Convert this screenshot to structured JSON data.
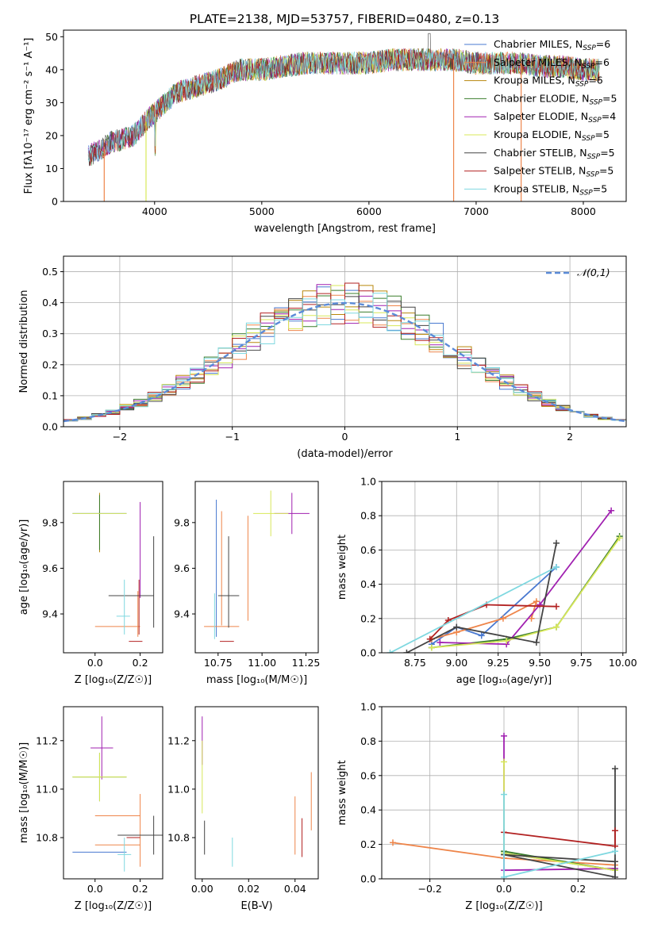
{
  "colors": {
    "series": [
      "#4878d0",
      "#ee854a",
      "#b8860b",
      "#3a7d2c",
      "#a020b0",
      "#d8e85a",
      "#444444",
      "#b22222",
      "#7fd8e0"
    ],
    "gauss": "#5b8bd8"
  },
  "chart_data": [
    {
      "id": "spectrum",
      "type": "line",
      "title": "PLATE=2138, MJD=53757, FIBERID=0480, z=0.13",
      "xlabel": "wavelength [Angstrom, rest frame]",
      "ylabel": "Flux [fλ10⁻¹⁷ erg cm⁻² s⁻¹ A⁻¹]",
      "xlim": [
        3150,
        8400
      ],
      "ylim": [
        0,
        52
      ],
      "xticks": [
        4000,
        5000,
        6000,
        7000,
        8000
      ],
      "yticks": [
        0,
        10,
        20,
        30,
        40,
        50
      ],
      "continuum": [
        [
          3400,
          14
        ],
        [
          3600,
          18
        ],
        [
          3800,
          20
        ],
        [
          4000,
          27
        ],
        [
          4200,
          33
        ],
        [
          4400,
          35
        ],
        [
          4600,
          37
        ],
        [
          4800,
          40
        ],
        [
          5000,
          40
        ],
        [
          5200,
          41
        ],
        [
          5400,
          42
        ],
        [
          5600,
          42
        ],
        [
          5800,
          42
        ],
        [
          6000,
          42
        ],
        [
          6200,
          43
        ],
        [
          6400,
          43
        ],
        [
          6600,
          43
        ],
        [
          6800,
          43
        ],
        [
          7000,
          42
        ],
        [
          7200,
          42
        ],
        [
          7400,
          42
        ],
        [
          7600,
          41
        ],
        [
          7800,
          41
        ],
        [
          8000,
          40
        ],
        [
          8150,
          40
        ]
      ],
      "dips": [
        [
          3530,
          0
        ],
        [
          3920,
          0
        ],
        [
          6790,
          0
        ],
        [
          7420,
          0
        ]
      ],
      "legend": [
        {
          "label": "Chabrier MILES, N",
          "n": "6"
        },
        {
          "label": "Salpeter MILES, N",
          "n": "6"
        },
        {
          "label": "Kroupa MILES, N",
          "n": "6"
        },
        {
          "label": "Chabrier ELODIE, N",
          "n": "5"
        },
        {
          "label": "Salpeter ELODIE, N",
          "n": "4"
        },
        {
          "label": "Kroupa ELODIE, N",
          "n": "5"
        },
        {
          "label": "Chabrier STELIB, N",
          "n": "5"
        },
        {
          "label": "Salpeter STELIB, N",
          "n": "5"
        },
        {
          "label": "Kroupa STELIB, N",
          "n": "5"
        }
      ],
      "legend_sub": "SSP",
      "legend_placement": "upper-right",
      "grid": false
    },
    {
      "id": "residuals",
      "type": "histogram",
      "xlabel": "(data-model)/error",
      "ylabel": "Normed distribution",
      "xlim": [
        -2.5,
        2.5
      ],
      "ylim": [
        0,
        0.55
      ],
      "xticks": [
        -2,
        -1,
        0,
        1,
        2
      ],
      "yticks": [
        0.0,
        0.1,
        0.2,
        0.3,
        0.4,
        0.5
      ],
      "bin_width": 0.125,
      "legend": [
        "𝒩(0,1)"
      ],
      "legend_placement": "upper-right",
      "grid": true
    },
    {
      "id": "age-vs-Z",
      "type": "errorbar",
      "xlabel": "Z [log₁₀(Z/Z☉)]",
      "ylabel": "age  [log₁₀(age/yr)]",
      "xlim": [
        -0.14,
        0.3
      ],
      "ylim": [
        9.23,
        9.98
      ],
      "xticks": [
        0.0,
        0.2
      ],
      "yticks": [
        9.4,
        9.6,
        9.8
      ],
      "points": [
        {
          "s": 0,
          "x": 0.02,
          "y": 9.84,
          "xe": 0.12,
          "ye": 0.01
        },
        {
          "s": 1,
          "x": 0.1,
          "y": 9.345,
          "xe": 0.1,
          "ye": 0.0
        },
        {
          "s": 1,
          "x": 0.19,
          "y": 9.4,
          "xe": 0.0,
          "ye": 0.1
        },
        {
          "s": 2,
          "x": 0.02,
          "y": 9.8,
          "xe": 0.0,
          "ye": 0.13
        },
        {
          "s": 3,
          "x": 0.02,
          "y": 9.8,
          "xe": 0.0,
          "ye": 0.12
        },
        {
          "s": 4,
          "x": 0.2,
          "y": 9.68,
          "xe": 0.0,
          "ye": 0.21
        },
        {
          "s": 5,
          "x": 0.02,
          "y": 9.84,
          "xe": 0.12,
          "ye": 0.0
        },
        {
          "s": 6,
          "x": 0.16,
          "y": 9.48,
          "xe": 0.1,
          "ye": 0.0
        },
        {
          "s": 6,
          "x": 0.26,
          "y": 9.54,
          "xe": 0.0,
          "ye": 0.2
        },
        {
          "s": 7,
          "x": 0.18,
          "y": 9.28,
          "xe": 0.03,
          "ye": 0.0
        },
        {
          "s": 7,
          "x": 0.195,
          "y": 9.43,
          "xe": 0.0,
          "ye": 0.12
        },
        {
          "s": 8,
          "x": 0.125,
          "y": 9.39,
          "xe": 0.03,
          "ye": 0.0
        },
        {
          "s": 8,
          "x": 0.13,
          "y": 9.43,
          "xe": 0.0,
          "ye": 0.12
        }
      ]
    },
    {
      "id": "age-vs-mass",
      "type": "errorbar",
      "xlabel": "mass [log₁₀(M/M☉)]",
      "ylabel": "",
      "xlim": [
        10.62,
        11.32
      ],
      "ylim": [
        9.23,
        9.98
      ],
      "xticks": [
        10.75,
        11.0,
        11.25
      ],
      "yticks": [
        9.4,
        9.6,
        9.8
      ],
      "points": [
        {
          "s": 0,
          "x": 10.74,
          "y": 9.6,
          "xe": 0.0,
          "ye": 0.3
        },
        {
          "s": 1,
          "x": 10.77,
          "y": 9.345,
          "xe": 0.1,
          "ye": 0.0
        },
        {
          "s": 1,
          "x": 10.77,
          "y": 9.6,
          "xe": 0.0,
          "ye": 0.25
        },
        {
          "s": 4,
          "x": 11.17,
          "y": 9.84,
          "xe": 0.1,
          "ye": 0.09
        },
        {
          "s": 5,
          "x": 11.05,
          "y": 9.84,
          "xe": 0.1,
          "ye": 0.1
        },
        {
          "s": 6,
          "x": 10.81,
          "y": 9.48,
          "xe": 0.06,
          "ye": 0.0
        },
        {
          "s": 6,
          "x": 10.81,
          "y": 9.54,
          "xe": 0.0,
          "ye": 0.2
        },
        {
          "s": 7,
          "x": 10.8,
          "y": 9.28,
          "xe": 0.04,
          "ye": 0.0
        },
        {
          "s": 8,
          "x": 10.73,
          "y": 9.39,
          "xe": 0.0,
          "ye": 0.1
        },
        {
          "s": 1,
          "x": 10.92,
          "y": 9.6,
          "xe": 0.0,
          "ye": 0.23
        }
      ]
    },
    {
      "id": "weight-vs-age",
      "type": "line",
      "xlabel": "age  [log₁₀(age/yr)]",
      "ylabel": "mass weight",
      "xlim": [
        8.55,
        10.02
      ],
      "ylim": [
        0,
        1
      ],
      "xticks": [
        8.75,
        9.0,
        9.25,
        9.5,
        9.75,
        10.0
      ],
      "yticks": [
        0.0,
        0.2,
        0.4,
        0.6,
        0.8,
        1.0
      ],
      "grid": true,
      "series": [
        {
          "s": 0,
          "x": [
            8.85,
            9.0,
            9.15,
            9.6
          ],
          "y": [
            0.05,
            0.15,
            0.1,
            0.5
          ]
        },
        {
          "s": 1,
          "x": [
            8.85,
            9.0,
            9.28,
            9.48,
            9.45
          ],
          "y": [
            0.08,
            0.12,
            0.2,
            0.3,
            0.2
          ]
        },
        {
          "s": 3,
          "x": [
            8.85,
            9.3,
            9.6,
            9.98
          ],
          "y": [
            0.03,
            0.08,
            0.15,
            0.68
          ]
        },
        {
          "s": 4,
          "x": [
            8.9,
            9.3,
            9.5,
            9.93
          ],
          "y": [
            0.06,
            0.05,
            0.28,
            0.83
          ]
        },
        {
          "s": 5,
          "x": [
            8.85,
            9.3,
            9.6,
            9.98
          ],
          "y": [
            0.03,
            0.07,
            0.15,
            0.67
          ]
        },
        {
          "s": 6,
          "x": [
            8.7,
            9.0,
            9.48,
            9.6
          ],
          "y": [
            0.0,
            0.15,
            0.06,
            0.64
          ]
        },
        {
          "s": 7,
          "x": [
            8.84,
            8.95,
            9.18,
            9.6
          ],
          "y": [
            0.08,
            0.19,
            0.28,
            0.27
          ]
        },
        {
          "s": 8,
          "x": [
            8.6,
            9.6
          ],
          "y": [
            0.0,
            0.5
          ]
        }
      ]
    },
    {
      "id": "mass-vs-Z",
      "type": "errorbar",
      "xlabel": "Z [log₁₀(Z/Z☉)]",
      "ylabel": "mass [log₁₀(M/M☉)]",
      "xlim": [
        -0.14,
        0.3
      ],
      "ylim": [
        10.63,
        11.34
      ],
      "xticks": [
        0.0,
        0.2
      ],
      "yticks": [
        10.8,
        11.0,
        11.2
      ],
      "points": [
        {
          "s": 0,
          "x": 0.02,
          "y": 10.74,
          "xe": 0.12,
          "ye": 0.0
        },
        {
          "s": 1,
          "x": 0.1,
          "y": 10.77,
          "xe": 0.1,
          "ye": 0.0
        },
        {
          "s": 1,
          "x": 0.2,
          "y": 10.83,
          "xe": 0.0,
          "ye": 0.15
        },
        {
          "s": 3,
          "x": 0.02,
          "y": 11.05,
          "xe": 0.12,
          "ye": 0.1
        },
        {
          "s": 4,
          "x": 0.03,
          "y": 11.17,
          "xe": 0.05,
          "ye": 0.13
        },
        {
          "s": 5,
          "x": 0.02,
          "y": 11.05,
          "xe": 0.12,
          "ye": 0.1
        },
        {
          "s": 6,
          "x": 0.2,
          "y": 10.81,
          "xe": 0.1,
          "ye": 0.0
        },
        {
          "s": 6,
          "x": 0.26,
          "y": 10.81,
          "xe": 0.0,
          "ye": 0.08
        },
        {
          "s": 7,
          "x": 0.17,
          "y": 10.8,
          "xe": 0.03,
          "ye": 0.0
        },
        {
          "s": 8,
          "x": 0.13,
          "y": 10.73,
          "xe": 0.03,
          "ye": 0.07
        },
        {
          "s": 1,
          "x": 0.1,
          "y": 10.89,
          "xe": 0.1,
          "ye": 0.0
        }
      ]
    },
    {
      "id": "mass-vs-EBV",
      "type": "errorbar",
      "xlabel": "E(B-V)",
      "ylabel": "",
      "xlim": [
        -0.003,
        0.05
      ],
      "ylim": [
        10.63,
        11.34
      ],
      "xticks": [
        0.0,
        0.02,
        0.04
      ],
      "yticks": [
        10.8,
        11.0,
        11.2
      ],
      "points": [
        {
          "s": 4,
          "x": 0.0,
          "y": 11.2,
          "xe": 0.0,
          "ye": 0.1
        },
        {
          "s": 5,
          "x": 0.0,
          "y": 11.05,
          "xe": 0.0,
          "ye": 0.15
        },
        {
          "s": 6,
          "x": 0.001,
          "y": 10.8,
          "xe": 0.0,
          "ye": 0.07
        },
        {
          "s": 8,
          "x": 0.013,
          "y": 10.74,
          "xe": 0.0,
          "ye": 0.06
        },
        {
          "s": 1,
          "x": 0.04,
          "y": 10.85,
          "xe": 0.0,
          "ye": 0.12
        },
        {
          "s": 7,
          "x": 0.043,
          "y": 10.8,
          "xe": 0.0,
          "ye": 0.08
        },
        {
          "s": 1,
          "x": 0.047,
          "y": 10.95,
          "xe": 0.0,
          "ye": 0.12
        }
      ]
    },
    {
      "id": "weight-vs-Z",
      "type": "line",
      "xlabel": "Z [log₁₀(Z/Z☉)]",
      "ylabel": "mass weight",
      "xlim": [
        -0.33,
        0.33
      ],
      "ylim": [
        0,
        1
      ],
      "xticks": [
        -0.2,
        0.0,
        0.2
      ],
      "yticks": [
        0.0,
        0.2,
        0.4,
        0.6,
        0.8,
        1.0
      ],
      "grid": true,
      "series": [
        {
          "s": 0,
          "x": [
            0.0,
            0.3
          ],
          "y": [
            0.15,
            0.05
          ]
        },
        {
          "s": 1,
          "x": [
            -0.3,
            0.0,
            0.3
          ],
          "y": [
            0.21,
            0.12,
            0.08
          ]
        },
        {
          "s": 3,
          "x": [
            0.0,
            0.3
          ],
          "y": [
            0.16,
            0.05
          ]
        },
        {
          "s": 4,
          "x": [
            0.0,
            0.0,
            0.3
          ],
          "y": [
            0.83,
            0.05,
            0.06
          ]
        },
        {
          "s": 5,
          "x": [
            0.0,
            0.0,
            0.3
          ],
          "y": [
            0.68,
            0.15,
            0.05
          ]
        },
        {
          "s": 6,
          "x": [
            0.3,
            0.3,
            0.0,
            0.3
          ],
          "y": [
            0.64,
            0.01,
            0.14,
            0.1
          ]
        },
        {
          "s": 7,
          "x": [
            0.0,
            0.3,
            0.3
          ],
          "y": [
            0.27,
            0.19,
            0.28
          ]
        },
        {
          "s": 8,
          "x": [
            0.0,
            0.0,
            0.3
          ],
          "y": [
            0.49,
            0.01,
            0.16
          ]
        }
      ]
    }
  ]
}
